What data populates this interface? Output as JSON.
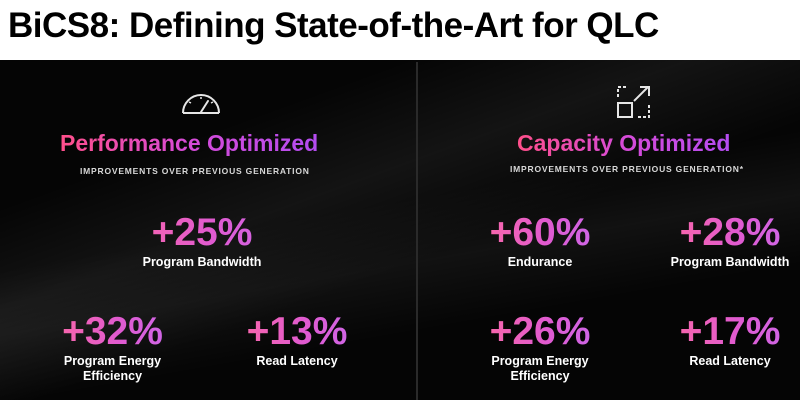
{
  "title": "BiCS8: Defining State-of-the-Art for QLC",
  "colors": {
    "accent_pink": "#ff4f8a",
    "accent_purple": "#b44cf0",
    "background": "#050505",
    "title_bar": "#ffffff"
  },
  "left": {
    "icon": "speedometer-icon",
    "heading": "Performance Optimized",
    "subheading": "IMPROVEMENTS OVER PREVIOUS GENERATION",
    "metrics": [
      {
        "value": "+25%",
        "label": "Program Bandwidth"
      },
      {
        "value": "+32%",
        "label": "Program Energy Efficiency"
      },
      {
        "value": "+13%",
        "label": "Read Latency"
      }
    ]
  },
  "right": {
    "icon": "expand-arrow-icon",
    "heading": "Capacity Optimized",
    "subheading": "IMPROVEMENTS OVER PREVIOUS GENERATION*",
    "metrics": [
      {
        "value": "+60%",
        "label": "Endurance"
      },
      {
        "value": "+28%",
        "label": "Program Bandwidth"
      },
      {
        "value": "+26%",
        "label": "Program Energy Efficiency"
      },
      {
        "value": "+17%",
        "label": "Read Latency"
      }
    ]
  }
}
